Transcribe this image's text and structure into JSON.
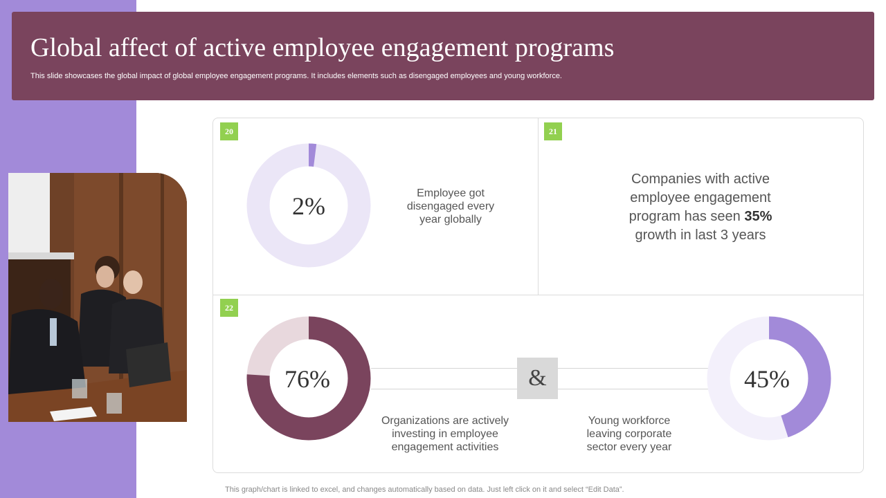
{
  "header": {
    "title": "Global affect of active employee engagement programs",
    "subtitle": "This slide showcases the global impact of global employee engagement programs. It includes elements such as disengaged employees and young workforce."
  },
  "cards": {
    "c20": {
      "badge": "20",
      "description": "Employee got disengaged every year globally"
    },
    "c21": {
      "badge": "21",
      "text_before": "Companies with active employee engagement program has seen ",
      "highlight": "35%",
      "text_after": " growth in last 3 years"
    },
    "c22": {
      "badge": "22",
      "left_description": "Organizations are actively investing in employee engagement activities",
      "connector": "&",
      "right_description": "Young workforce leaving corporate sector every year"
    }
  },
  "colors": {
    "purple": "#a28ad9",
    "purple_light": "#ebe6f7",
    "plum": "#7a445d",
    "plum_light": "#e8d8dd",
    "lavender_light": "#f3f0fb",
    "badge_green": "#92d050"
  },
  "chart_data": [
    {
      "type": "pie",
      "name": "disengaged",
      "value": 2,
      "label": "2%",
      "remainder": 98,
      "color": "#a28ad9",
      "track": "#ebe6f7"
    },
    {
      "type": "pie",
      "name": "investing",
      "value": 76,
      "label": "76%",
      "remainder": 24,
      "color": "#7a445d",
      "track": "#e8d8dd"
    },
    {
      "type": "pie",
      "name": "young-workforce",
      "value": 45,
      "label": "45%",
      "remainder": 55,
      "color": "#a28ad9",
      "track": "#f3f0fb"
    }
  ],
  "footnote": "This graph/chart is linked to excel, and changes automatically based on data. Just left click on it and select “Edit Data”."
}
